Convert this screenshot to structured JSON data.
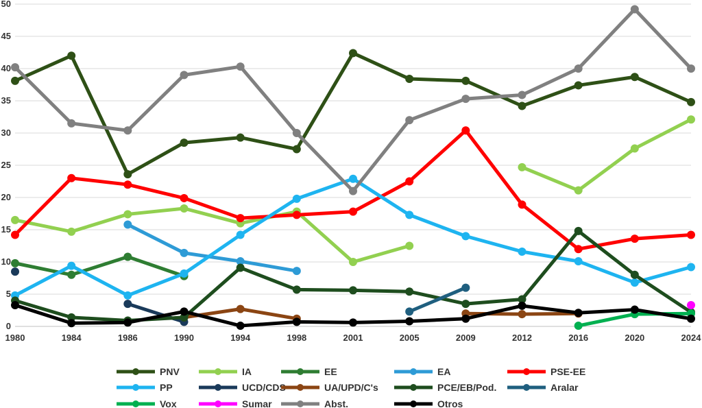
{
  "chart_data": {
    "type": "line",
    "title": "",
    "xlabel": "",
    "ylabel": "",
    "ylim": [
      0,
      50
    ],
    "y_ticks": [
      "0",
      "5",
      "10",
      "15",
      "20",
      "25",
      "30",
      "35",
      "40",
      "45",
      "50"
    ],
    "grid": "horizontal",
    "legend": "bottom",
    "categories": [
      "1980",
      "1984",
      "1986",
      "1990",
      "1994",
      "1998",
      "2001",
      "2005",
      "2009",
      "2012",
      "2016",
      "2020",
      "2024"
    ],
    "series": [
      {
        "name": "PNV",
        "color": "#2e5016",
        "values": [
          38.1,
          42.0,
          23.6,
          28.5,
          29.3,
          27.5,
          42.4,
          38.4,
          38.1,
          34.2,
          37.4,
          38.7,
          34.8
        ]
      },
      {
        "name": "IA",
        "color": "#92d050",
        "values": [
          16.5,
          14.7,
          17.4,
          18.3,
          16.0,
          17.8,
          10.0,
          12.5,
          null,
          24.7,
          21.1,
          27.6,
          32.1
        ]
      },
      {
        "name": "EE",
        "color": "#2e7d32",
        "values": [
          9.8,
          8.0,
          10.8,
          7.8,
          null,
          null,
          null,
          null,
          null,
          null,
          null,
          null,
          null
        ]
      },
      {
        "name": "EA",
        "color": "#2e9bd6",
        "values": [
          null,
          null,
          15.8,
          11.4,
          10.1,
          8.6,
          null,
          null,
          null,
          null,
          null,
          null,
          null
        ]
      },
      {
        "name": "PSE-EE",
        "color": "#ff0000",
        "values": [
          14.2,
          23.0,
          22.0,
          19.9,
          16.8,
          17.3,
          17.8,
          22.5,
          30.4,
          18.9,
          12.0,
          13.6,
          14.2
        ]
      },
      {
        "name": "PP",
        "color": "#1eb4f0",
        "values": [
          4.8,
          9.4,
          4.8,
          8.2,
          14.2,
          19.8,
          22.9,
          17.3,
          14.0,
          11.6,
          10.1,
          6.8,
          9.2
        ]
      },
      {
        "name": "UCD/CDS",
        "color": "#1a3a5a",
        "values": [
          8.5,
          null,
          3.5,
          0.7,
          null,
          null,
          null,
          null,
          null,
          null,
          null,
          null,
          null
        ]
      },
      {
        "name": "UA/UPD/C's",
        "color": "#8b4513",
        "values": [
          null,
          null,
          null,
          1.4,
          2.7,
          1.2,
          null,
          null,
          2.0,
          1.9,
          2.0,
          null,
          null
        ]
      },
      {
        "name": "PCE/EB/Pod.",
        "color": "#1e4d1e",
        "values": [
          4.0,
          1.4,
          0.9,
          1.4,
          9.1,
          5.7,
          5.6,
          5.4,
          3.5,
          4.2,
          14.8,
          8.0,
          2.2
        ]
      },
      {
        "name": "Aralar",
        "color": "#1f5f7f",
        "values": [
          null,
          null,
          null,
          null,
          null,
          null,
          null,
          2.3,
          6.0,
          null,
          null,
          null,
          null
        ]
      },
      {
        "name": "Vox",
        "color": "#00b050",
        "values": [
          null,
          null,
          null,
          null,
          null,
          null,
          null,
          null,
          null,
          null,
          0.1,
          1.9,
          2.0
        ]
      },
      {
        "name": "Sumar",
        "color": "#ff00ff",
        "values": [
          null,
          null,
          null,
          null,
          null,
          null,
          null,
          null,
          null,
          null,
          null,
          null,
          3.3
        ]
      },
      {
        "name": "Abst.",
        "color": "#808080",
        "values": [
          40.2,
          31.5,
          30.4,
          39.0,
          40.3,
          30.0,
          21.0,
          32.0,
          35.3,
          35.9,
          40.0,
          49.2,
          40.0
        ]
      },
      {
        "name": "Otros",
        "color": "#000000",
        "values": [
          3.3,
          0.5,
          0.6,
          2.3,
          0.1,
          0.7,
          0.6,
          0.8,
          1.2,
          3.2,
          2.1,
          2.6,
          1.2
        ]
      }
    ]
  }
}
